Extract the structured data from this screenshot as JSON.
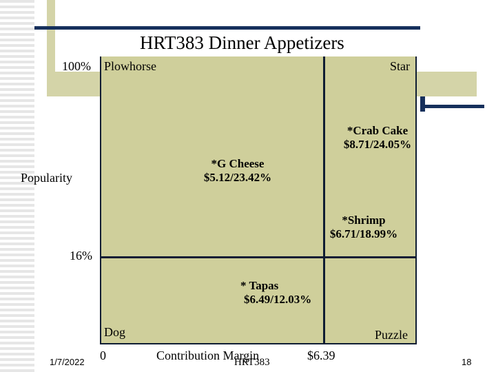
{
  "title": "HRT383 Dinner Appetizers",
  "axes": {
    "y_top": "100%",
    "y_mid": "16%",
    "y_label": "Popularity",
    "x_min": "0",
    "x_label": "Contribution Margin",
    "x_mid": "$6.39"
  },
  "quadrants": {
    "top_left": "Plowhorse",
    "top_right": "Star",
    "bottom_left": "Dog",
    "bottom_right": "Puzzle"
  },
  "items": [
    {
      "name": "*Crab Cake",
      "value": "$8.71/24.05%"
    },
    {
      "name": "*G Cheese",
      "value": "$5.12/23.42%"
    },
    {
      "name": "*Shrimp",
      "value": "$6.71/18.99%"
    },
    {
      "name": "* Tapas",
      "value": "$6.49/12.03%"
    }
  ],
  "footer": {
    "date": "1/7/2022",
    "center": "HRT383",
    "page": "18"
  },
  "colors": {
    "quadrant_fill": "#cfcf9b",
    "accent_navy": "#16305c",
    "accent_tan": "#d4d4a8"
  }
}
